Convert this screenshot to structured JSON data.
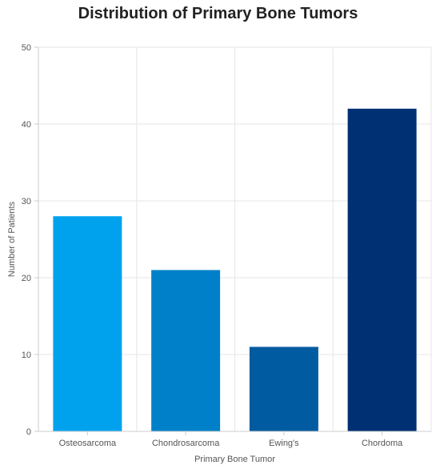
{
  "chart_data": {
    "type": "bar",
    "title": "Distribution of Primary Bone Tumors",
    "xlabel": "Primary Bone Tumor",
    "ylabel": "Number of Patients",
    "categories": [
      "Osteosarcoma",
      "Chondrosarcoma",
      "Ewing's",
      "Chordoma"
    ],
    "values": [
      28,
      21,
      11,
      42
    ],
    "colors": [
      "#00a2ee",
      "#0080c8",
      "#005ba0",
      "#003074"
    ],
    "ylim": [
      0,
      50
    ],
    "yticks": [
      "0",
      "10",
      "20",
      "30",
      "40",
      "50"
    ],
    "grid": true,
    "legend": false
  }
}
